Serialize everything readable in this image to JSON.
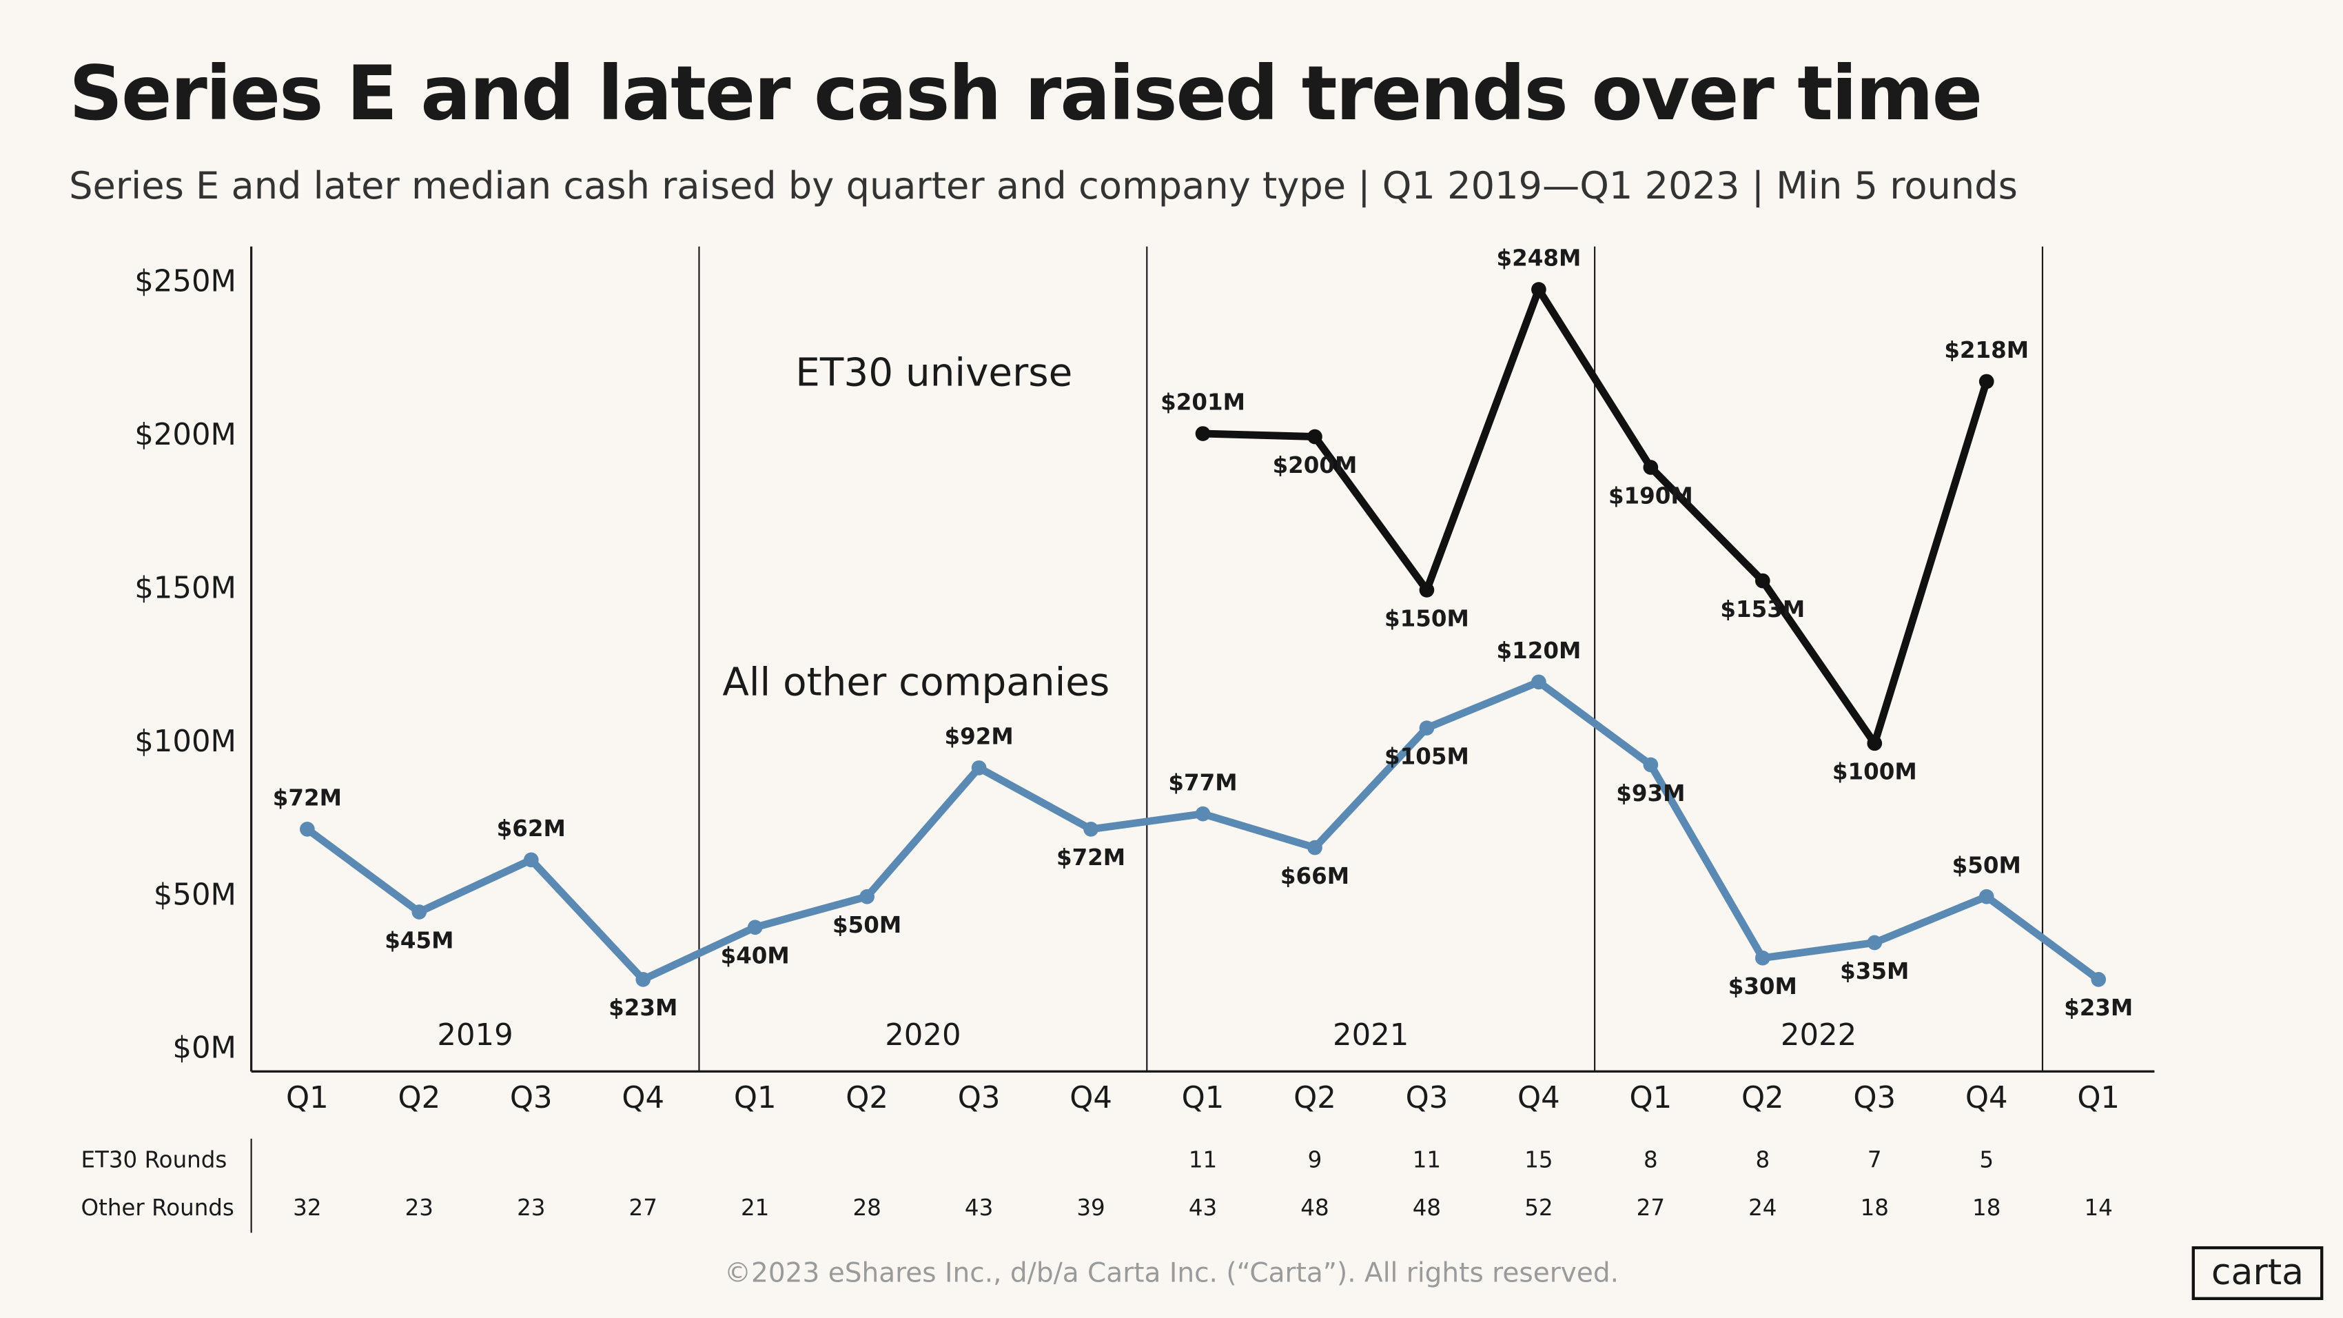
{
  "chart_data": {
    "type": "line",
    "title": "Series E and later cash raised trends over time",
    "subtitle": "Series E and later median cash raised by quarter and company type | Q1 2019—Q1 2023 | Min 5 rounds",
    "categories": [
      "Q1",
      "Q2",
      "Q3",
      "Q4",
      "Q1",
      "Q2",
      "Q3",
      "Q4",
      "Q1",
      "Q2",
      "Q3",
      "Q4",
      "Q1",
      "Q2",
      "Q3",
      "Q4",
      "Q1"
    ],
    "year_labels": [
      "2019",
      "2020",
      "2021",
      "2022"
    ],
    "series": [
      {
        "name": "ET30 universe",
        "color": "#111111",
        "values": [
          null,
          null,
          null,
          null,
          null,
          null,
          null,
          null,
          201,
          200,
          150,
          248,
          190,
          153,
          100,
          218,
          null
        ],
        "value_labels": [
          null,
          null,
          null,
          null,
          null,
          null,
          null,
          null,
          "$201M",
          "$200M",
          "$150M",
          "$248M",
          "$190M",
          "$153M",
          "$100M",
          "$218M",
          null
        ]
      },
      {
        "name": "All other companies",
        "color": "#5a8ab3",
        "values": [
          72,
          45,
          62,
          23,
          40,
          50,
          92,
          72,
          77,
          66,
          105,
          120,
          93,
          30,
          35,
          50,
          23
        ],
        "value_labels": [
          "$72M",
          "$45M",
          "$62M",
          "$23M",
          "$40M",
          "$50M",
          "$92M",
          "$72M",
          "$77M",
          "$66M",
          "$105M",
          "$120M",
          "$93M",
          "$30M",
          "$35M",
          "$50M",
          "$23M"
        ]
      }
    ],
    "ylim": [
      -7,
      262
    ],
    "yticks": [
      {
        "value": 0,
        "label": "$0M"
      },
      {
        "value": 50,
        "label": "$50M"
      },
      {
        "value": 100,
        "label": "$100M"
      },
      {
        "value": 150,
        "label": "$150M"
      },
      {
        "value": 200,
        "label": "$200M"
      },
      {
        "value": 250,
        "label": "$250M"
      }
    ],
    "grid": false
  },
  "rounds_table": {
    "rows": [
      {
        "label": "ET30 Rounds",
        "values": [
          null,
          null,
          null,
          null,
          null,
          null,
          null,
          null,
          11,
          9,
          11,
          15,
          8,
          8,
          7,
          5,
          null
        ]
      },
      {
        "label": "Other Rounds",
        "values": [
          32,
          23,
          23,
          27,
          21,
          28,
          43,
          39,
          43,
          48,
          48,
          52,
          27,
          24,
          18,
          18,
          14
        ]
      }
    ]
  },
  "footer": "©2023 eShares Inc., d/b/a Carta Inc. (“Carta”). All rights reserved.",
  "logo": "carta"
}
